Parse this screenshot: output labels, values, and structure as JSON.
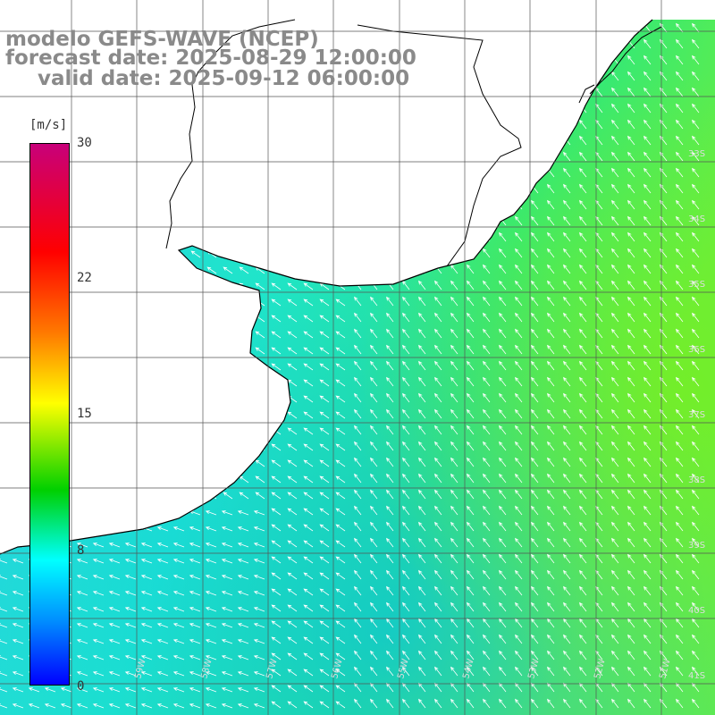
{
  "title": {
    "line1": "modelo GEFS-WAVE (NCEP)",
    "line2": "forecast date: 2025-08-29 12:00:00",
    "line3": "valid date: 2025-09-12 06:00:00"
  },
  "colorbar": {
    "unit": "[m/s]",
    "ticks": [
      "30",
      "22",
      "15",
      "8",
      "0"
    ],
    "colors": [
      "#c8007a",
      "#ff0000",
      "#ff7a00",
      "#ffff00",
      "#00d000",
      "#00ffff",
      "#0090ff",
      "#0000ff"
    ]
  },
  "axes": {
    "lon_labels": [
      "59W",
      "58W",
      "57W",
      "56W",
      "55W",
      "54W",
      "53W",
      "52W",
      "51W"
    ],
    "lat_labels": [
      "33S",
      "34S",
      "35S",
      "36S",
      "37S",
      "38S",
      "39S",
      "40S",
      "41S"
    ]
  },
  "colors": {
    "land": "#ffffff",
    "coastline": "#000000",
    "grid": "#555555",
    "arrows": "#ffffff",
    "title": "#8a8a8a"
  }
}
